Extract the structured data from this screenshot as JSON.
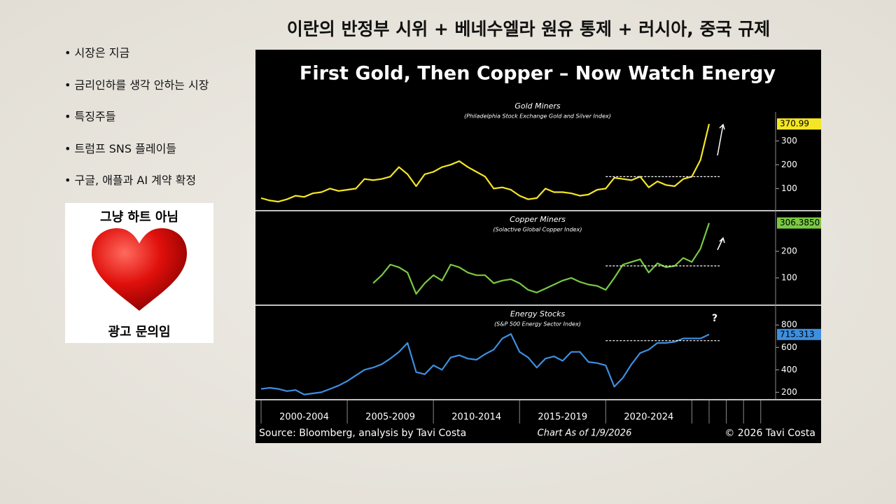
{
  "slide": {
    "title": "이란의 반정부 시위 + 베네수엘라 원유 통제 + 러시아, 중국 규제",
    "bullets": [
      "시장은 지금",
      "금리인하를 생각 안하는 시장",
      "특징주들",
      "트럼프 SNS 플레이들",
      "구글, 애플과 AI 계약 확정"
    ],
    "ad": {
      "top": "그냥 하트 아님",
      "bottom": "광고 문의임"
    }
  },
  "chart_header": {
    "title": "First Gold, Then Copper – Now Watch Energy",
    "x_axis_labels": [
      "2000-2004",
      "2005-2009",
      "2010-2014",
      "2015-2019",
      "2020-2024"
    ],
    "source": "Source: Bloomberg, analysis by Tavi Costa",
    "as_of": "Chart As of 1/9/2026",
    "copyright": "© 2026 Tavi Costa"
  },
  "chart_data": [
    {
      "type": "line",
      "title": "Gold Miners",
      "subtitle": "(Philadelphia Stock Exchange Gold and Silver Index)",
      "color": "#f5e625",
      "values": [
        60,
        50,
        45,
        55,
        70,
        65,
        80,
        85,
        100,
        90,
        95,
        100,
        140,
        135,
        140,
        150,
        190,
        160,
        110,
        160,
        170,
        190,
        200,
        215,
        190,
        170,
        150,
        100,
        105,
        95,
        70,
        55,
        60,
        100,
        85,
        85,
        80,
        70,
        75,
        95,
        100,
        145,
        140,
        135,
        150,
        105,
        130,
        115,
        110,
        140,
        150,
        220,
        370.99
      ],
      "last_label": "370.99",
      "reference_line": 150,
      "ylim": [
        10,
        480
      ],
      "yticks": [
        100,
        200,
        300
      ]
    },
    {
      "type": "line",
      "title": "Copper Miners",
      "subtitle": "(Solactive Global Copper Index)",
      "color": "#7ac943",
      "values": [
        null,
        null,
        null,
        null,
        null,
        null,
        null,
        null,
        null,
        null,
        null,
        null,
        null,
        80,
        110,
        150,
        140,
        120,
        40,
        80,
        110,
        90,
        150,
        140,
        120,
        110,
        110,
        80,
        90,
        95,
        80,
        55,
        45,
        60,
        75,
        90,
        100,
        85,
        75,
        70,
        55,
        100,
        150,
        160,
        170,
        120,
        155,
        140,
        145,
        175,
        160,
        210,
        306.385
      ],
      "last_label": "306.3850",
      "reference_line": 145,
      "ylim": [
        0,
        350
      ],
      "yticks": [
        100,
        200
      ]
    },
    {
      "type": "line",
      "title": "Energy Stocks",
      "subtitle": "(S&P 500 Energy Sector Index)",
      "color": "#3d8fe0",
      "values": [
        230,
        240,
        230,
        210,
        220,
        180,
        190,
        200,
        230,
        260,
        300,
        350,
        400,
        420,
        450,
        500,
        560,
        640,
        380,
        360,
        440,
        400,
        510,
        530,
        500,
        490,
        540,
        580,
        680,
        720,
        560,
        510,
        420,
        500,
        520,
        480,
        560,
        560,
        470,
        460,
        440,
        250,
        330,
        450,
        550,
        580,
        640,
        640,
        650,
        680,
        680,
        680,
        715.313
      ],
      "last_label": "715.313",
      "reference_line": 660,
      "annotation": "?",
      "ylim": [
        140,
        970
      ],
      "yticks": [
        200,
        400,
        600,
        800
      ]
    }
  ]
}
